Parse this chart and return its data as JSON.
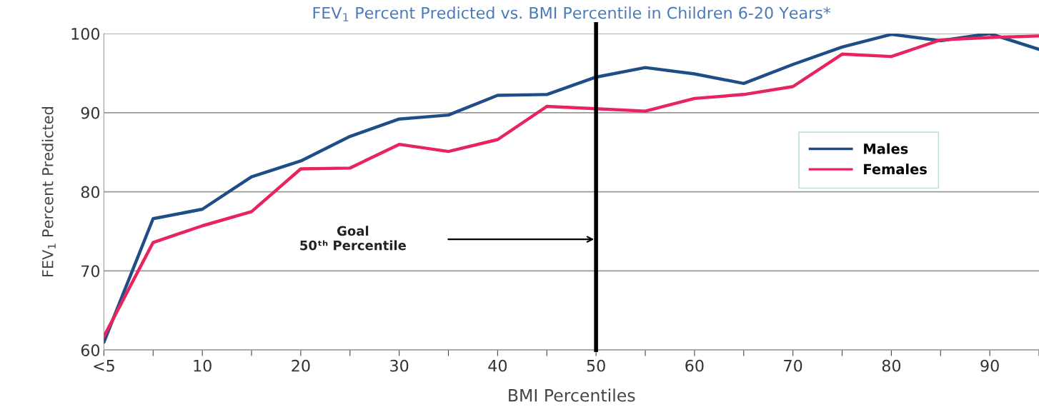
{
  "chart_data": {
    "type": "line",
    "title": "FEV$_{1}$ Percent Predicted vs. BMI Percentile in Children 6-20 Years*",
    "xlabel": "BMI Percentiles",
    "ylabel": "FEV$_{1}$ Percent Predicted",
    "x": [
      0,
      5,
      10,
      15,
      20,
      25,
      30,
      35,
      40,
      45,
      50,
      55,
      60,
      65,
      70,
      75,
      80,
      85,
      90,
      95
    ],
    "series": [
      {
        "name": "Males",
        "color": "#1f4e86",
        "values": [
          61.0,
          76.6,
          77.8,
          81.9,
          83.9,
          87.0,
          89.2,
          89.7,
          92.2,
          92.3,
          94.5,
          95.7,
          94.9,
          93.7,
          96.1,
          98.3,
          99.9,
          99.1,
          100,
          98.0
        ]
      },
      {
        "name": "Females",
        "color": "#e8245f",
        "values": [
          61.7,
          73.6,
          75.7,
          77.5,
          82.9,
          83.0,
          86.0,
          85.1,
          86.6,
          90.8,
          90.5,
          90.2,
          91.8,
          92.3,
          93.3,
          97.4,
          97.1,
          99.2,
          99.5,
          99.7
        ]
      }
    ],
    "xlim": [
      0,
      95
    ],
    "ylim": [
      60,
      100
    ],
    "xticks": [
      {
        "value": 0,
        "label": "<5"
      },
      {
        "value": 5,
        "label": null
      },
      10,
      {
        "value": 15,
        "label": null
      },
      20,
      {
        "value": 25,
        "label": null
      },
      30,
      {
        "value": 35,
        "label": null
      },
      40,
      {
        "value": 45,
        "label": null
      },
      50,
      {
        "value": 55,
        "label": null
      },
      60,
      {
        "value": 65,
        "label": null
      },
      70,
      {
        "value": 75,
        "label": null
      },
      80,
      {
        "value": 85,
        "label": null
      },
      90,
      {
        "value": 95,
        "label": null
      }
    ],
    "yticks": [
      60,
      70,
      80,
      90,
      100
    ],
    "ref_lines": [
      {
        "axis": "x",
        "value": 50,
        "color": "#000000"
      }
    ],
    "annotations": [
      "Goal\n50ᵗʰ Percentile"
    ],
    "grid": "y",
    "legend": "right",
    "marker": "none",
    "line_style": "solid"
  }
}
